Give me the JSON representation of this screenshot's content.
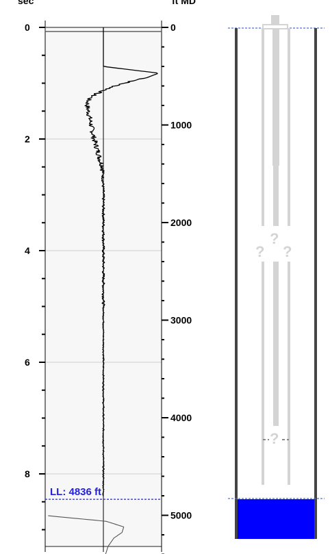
{
  "chart_data": [
    {
      "type": "line",
      "left_axis": {
        "label": "sec",
        "range": [
          0,
          9.4
        ],
        "ticks": [
          "0",
          "2",
          "4",
          "6",
          "8"
        ],
        "minor_step": 0.5
      },
      "right_axis": {
        "label": "ft MD",
        "range": [
          0,
          5400
        ],
        "ticks": [
          "0",
          "1000",
          "2000",
          "3000",
          "4000",
          "5000"
        ],
        "minor_step": 200
      },
      "grid": true,
      "liquid_level": {
        "label": "LL: 4836 ft",
        "depth_ft": 4836,
        "time_sec": 8.45,
        "color": "#2222dd"
      },
      "series": [
        {
          "kind": "acoustic-trace",
          "color": "#000000",
          "x": [
            0.0,
            0.4,
            0.7,
            0.82,
            0.9,
            0.95,
            1.0,
            1.05,
            1.1,
            1.2,
            1.3,
            1.4,
            1.6,
            1.8,
            2.0,
            2.2,
            2.4,
            2.5,
            2.7,
            3.0,
            3.5,
            4.0,
            4.5,
            5.0,
            6.0,
            7.0,
            8.0,
            8.4
          ],
          "y": [
            0.0,
            0.0,
            0.0,
            0.95,
            0.75,
            0.55,
            0.35,
            0.2,
            0.08,
            -0.15,
            -0.26,
            -0.28,
            -0.24,
            -0.2,
            -0.16,
            -0.1,
            -0.05,
            -0.01,
            -0.01,
            0.0,
            0.0,
            0.0,
            0.0,
            0.0,
            0.0,
            0.0,
            0.0,
            0.0
          ]
        },
        {
          "kind": "echo-trace",
          "color": "#555555",
          "x": [
            8.75,
            8.85,
            8.95,
            9.05,
            9.15,
            9.3,
            9.5
          ],
          "y": [
            -0.95,
            0.05,
            0.35,
            0.32,
            0.18,
            0.08,
            0.02
          ]
        }
      ]
    }
  ],
  "wellbore": {
    "casing_color": "#444444",
    "tubing_color": "#d4d4d4",
    "fluid_color": "#0000ff",
    "unknown_markers": [
      "?",
      "?",
      "?",
      "?"
    ]
  }
}
